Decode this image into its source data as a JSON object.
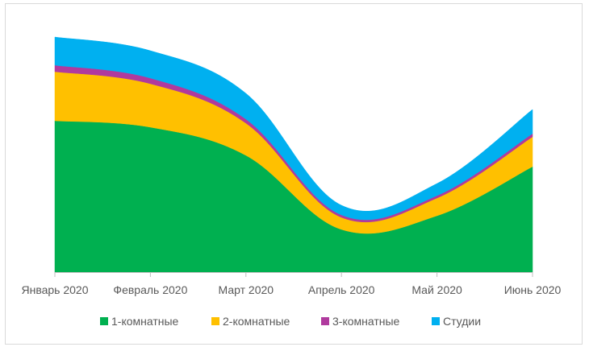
{
  "chart_data": {
    "type": "area",
    "stacked": true,
    "title": "",
    "xlabel": "",
    "ylabel": "",
    "categories": [
      "Январь 2020",
      "Февраль 2020",
      "Март 2020",
      "Апрель 2020",
      "Май 2020",
      "Июнь 2020"
    ],
    "series": [
      {
        "name": "1-комнатные",
        "color": "#00b050",
        "values": [
          188,
          180,
          145,
          53,
          70,
          131
        ]
      },
      {
        "name": "2-комнатные",
        "color": "#ffc000",
        "values": [
          61,
          54,
          40,
          15,
          22,
          37
        ]
      },
      {
        "name": "3-комнатные",
        "color": "#b03a9e",
        "values": [
          8,
          7,
          5,
          3,
          3,
          4
        ]
      },
      {
        "name": "Студии",
        "color": "#00b0f0",
        "values": [
          35,
          34,
          32,
          12,
          15,
          30
        ]
      }
    ],
    "y_axis_visible": false,
    "grid": false,
    "legend_position": "bottom"
  }
}
